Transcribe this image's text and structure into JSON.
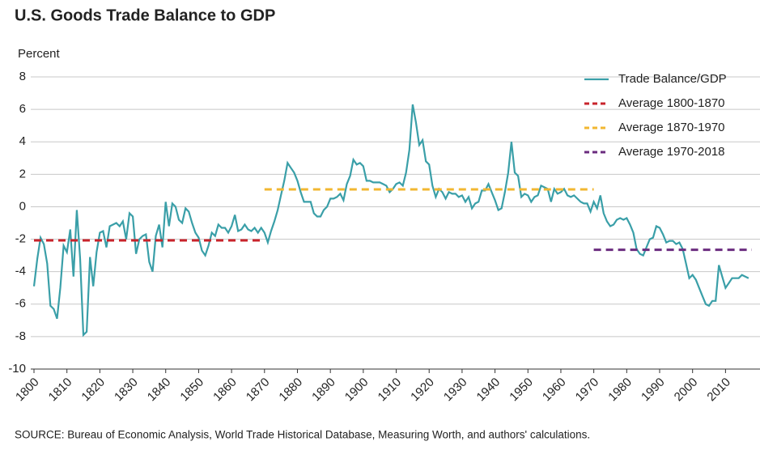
{
  "chart_data": {
    "type": "line",
    "title": "U.S. Goods Trade Balance to GDP",
    "y_label": "Percent",
    "source": "SOURCE: Bureau of Economic Analysis, World Trade Historical Database, Measuring Worth, and authors' calculations.",
    "xlim": [
      1800,
      2019
    ],
    "ylim": [
      -10,
      8
    ],
    "xticks": [
      1800,
      1810,
      1820,
      1830,
      1840,
      1850,
      1860,
      1870,
      1880,
      1890,
      1900,
      1910,
      1920,
      1930,
      1940,
      1950,
      1960,
      1970,
      1980,
      1990,
      2000,
      2010
    ],
    "yticks": [
      -10,
      -8,
      -6,
      -4,
      -2,
      0,
      2,
      4,
      6,
      8
    ],
    "grid": true,
    "legend": "top-right",
    "series": [
      {
        "name": "Trade Balance/GDP",
        "color": "#3a9fa8",
        "dashed": false,
        "x": [
          1800,
          1801,
          1802,
          1803,
          1804,
          1805,
          1806,
          1807,
          1808,
          1809,
          1810,
          1811,
          1812,
          1813,
          1814,
          1815,
          1816,
          1817,
          1818,
          1819,
          1820,
          1821,
          1822,
          1823,
          1824,
          1825,
          1826,
          1827,
          1828,
          1829,
          1830,
          1831,
          1832,
          1833,
          1834,
          1835,
          1836,
          1837,
          1838,
          1839,
          1840,
          1841,
          1842,
          1843,
          1844,
          1845,
          1846,
          1847,
          1848,
          1849,
          1850,
          1851,
          1852,
          1853,
          1854,
          1855,
          1856,
          1857,
          1858,
          1859,
          1860,
          1861,
          1862,
          1863,
          1864,
          1865,
          1866,
          1867,
          1868,
          1869,
          1870,
          1871,
          1872,
          1873,
          1874,
          1875,
          1876,
          1877,
          1878,
          1879,
          1880,
          1881,
          1882,
          1883,
          1884,
          1885,
          1886,
          1887,
          1888,
          1889,
          1890,
          1891,
          1892,
          1893,
          1894,
          1895,
          1896,
          1897,
          1898,
          1899,
          1900,
          1901,
          1902,
          1903,
          1904,
          1905,
          1906,
          1907,
          1908,
          1909,
          1910,
          1911,
          1912,
          1913,
          1914,
          1915,
          1916,
          1917,
          1918,
          1919,
          1920,
          1921,
          1922,
          1923,
          1924,
          1925,
          1926,
          1927,
          1928,
          1929,
          1930,
          1931,
          1932,
          1933,
          1934,
          1935,
          1936,
          1937,
          1938,
          1939,
          1940,
          1941,
          1942,
          1943,
          1944,
          1945,
          1946,
          1947,
          1948,
          1949,
          1950,
          1951,
          1952,
          1953,
          1954,
          1955,
          1956,
          1957,
          1958,
          1959,
          1960,
          1961,
          1962,
          1963,
          1964,
          1965,
          1966,
          1967,
          1968,
          1969,
          1970,
          1971,
          1972,
          1973,
          1974,
          1975,
          1976,
          1977,
          1978,
          1979,
          1980,
          1981,
          1982,
          1983,
          1984,
          1985,
          1986,
          1987,
          1988,
          1989,
          1990,
          1991,
          1992,
          1993,
          1994,
          1995,
          1996,
          1997,
          1998,
          1999,
          2000,
          2001,
          2002,
          2003,
          2004,
          2005,
          2006,
          2007,
          2008,
          2009,
          2010,
          2011,
          2012,
          2013,
          2014,
          2015,
          2016,
          2017
        ],
        "values": [
          -4.9,
          -3.2,
          -1.9,
          -2.3,
          -3.5,
          -6.1,
          -6.3,
          -6.9,
          -5.0,
          -2.4,
          -2.8,
          -1.4,
          -4.3,
          -0.2,
          -3.2,
          -7.9,
          -7.7,
          -3.1,
          -4.9,
          -2.8,
          -1.6,
          -1.5,
          -2.5,
          -1.2,
          -1.1,
          -1.0,
          -1.2,
          -0.9,
          -2.0,
          -0.4,
          -0.6,
          -2.9,
          -2.0,
          -1.8,
          -1.7,
          -3.4,
          -4.0,
          -1.8,
          -1.1,
          -2.5,
          0.3,
          -1.2,
          0.2,
          0.0,
          -0.8,
          -1.0,
          -0.1,
          -0.3,
          -1.0,
          -1.6,
          -1.9,
          -2.7,
          -3.0,
          -2.4,
          -1.6,
          -1.8,
          -1.1,
          -1.3,
          -1.3,
          -1.6,
          -1.2,
          -0.5,
          -1.5,
          -1.4,
          -1.1,
          -1.4,
          -1.5,
          -1.3,
          -1.6,
          -1.3,
          -1.6,
          -2.2,
          -1.5,
          -0.9,
          -0.2,
          0.7,
          1.6,
          2.7,
          2.4,
          2.1,
          1.6,
          0.9,
          0.3,
          0.3,
          0.3,
          -0.4,
          -0.6,
          -0.6,
          -0.2,
          0.0,
          0.5,
          0.5,
          0.6,
          0.8,
          0.4,
          1.4,
          1.9,
          2.9,
          2.6,
          2.7,
          2.5,
          1.6,
          1.6,
          1.5,
          1.5,
          1.5,
          1.4,
          1.3,
          0.9,
          1.1,
          1.4,
          1.5,
          1.3,
          2.1,
          3.5,
          6.3,
          5.2,
          3.8,
          4.1,
          2.8,
          2.6,
          1.3,
          0.6,
          1.1,
          0.9,
          0.5,
          0.9,
          0.8,
          0.8,
          0.6,
          0.7,
          0.3,
          0.6,
          -0.1,
          0.2,
          0.3,
          1.0,
          1.0,
          1.4,
          0.9,
          0.4,
          -0.2,
          -0.1,
          0.9,
          2.1,
          4.0,
          2.1,
          1.9,
          0.6,
          0.8,
          0.7,
          0.3,
          0.6,
          0.7,
          1.3,
          1.2,
          1.1,
          0.3,
          1.1,
          0.8,
          0.9,
          1.1,
          0.7,
          0.6,
          0.7,
          0.5,
          0.3,
          0.2,
          0.2,
          -0.3,
          0.3,
          -0.1,
          0.7,
          -0.4,
          -0.9,
          -1.2,
          -1.1,
          -0.8,
          -0.7,
          -0.8,
          -0.7,
          -1.1,
          -1.6,
          -2.6,
          -2.9,
          -3.0,
          -2.5,
          -2.0,
          -1.9,
          -1.2,
          -1.3,
          -1.7,
          -2.2,
          -2.1,
          -2.1,
          -2.3,
          -2.2,
          -2.6,
          -3.5,
          -4.4,
          -4.2,
          -4.5,
          -5.0,
          -5.5,
          -6.0,
          -6.1,
          -5.8,
          -5.8,
          -3.6,
          -4.3,
          -5.0,
          -4.7,
          -4.4,
          -4.4,
          -4.4,
          -4.2,
          -4.3,
          -4.4
        ]
      },
      {
        "name": "Average 1800-1870",
        "color": "#c8242c",
        "dashed": true,
        "x": [
          1800,
          1870
        ],
        "values": [
          -2.07,
          -2.07
        ]
      },
      {
        "name": "Average 1870-1970",
        "color": "#f2b731",
        "dashed": true,
        "x": [
          1870,
          1970
        ],
        "values": [
          1.07,
          1.07
        ]
      },
      {
        "name": "Average 1970-2018",
        "color": "#6b2c7f",
        "dashed": true,
        "x": [
          1970,
          2018
        ],
        "values": [
          -2.65,
          -2.65
        ]
      }
    ]
  }
}
